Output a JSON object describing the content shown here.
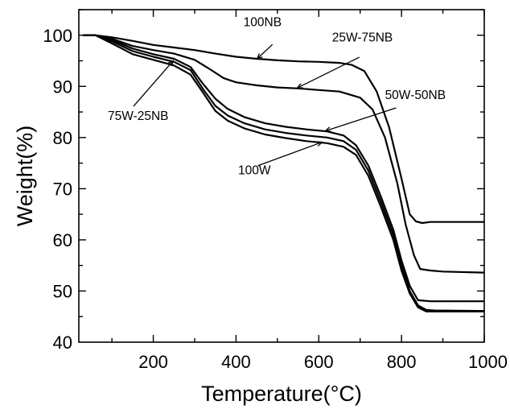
{
  "chart_data": {
    "type": "line",
    "title": "",
    "xlabel": "Temperature(°C)",
    "ylabel": "Weight(%)",
    "xlim": [
      20,
      1000
    ],
    "ylim": [
      40,
      105
    ],
    "x_ticks": [
      200,
      400,
      600,
      800,
      1000
    ],
    "y_ticks": [
      40,
      50,
      60,
      70,
      80,
      90,
      100
    ],
    "x_tick_labels": [
      "200",
      "400",
      "600",
      "800",
      "1000"
    ],
    "y_tick_labels": [
      "40",
      "50",
      "60",
      "70",
      "80",
      "90",
      "100"
    ],
    "grid": false,
    "legend": "none",
    "series": [
      {
        "name": "100NB",
        "points": [
          [
            30,
            100
          ],
          [
            60,
            100
          ],
          [
            100,
            99.6
          ],
          [
            150,
            98.9
          ],
          [
            200,
            98.1
          ],
          [
            250,
            97.6
          ],
          [
            300,
            97.1
          ],
          [
            350,
            96.4
          ],
          [
            400,
            95.8
          ],
          [
            450,
            95.4
          ],
          [
            500,
            95.1
          ],
          [
            550,
            94.9
          ],
          [
            600,
            94.8
          ],
          [
            650,
            94.6
          ],
          [
            680,
            94.2
          ],
          [
            710,
            93
          ],
          [
            740,
            89
          ],
          [
            770,
            82
          ],
          [
            800,
            72
          ],
          [
            820,
            65
          ],
          [
            835,
            63.6
          ],
          [
            850,
            63.3
          ],
          [
            870,
            63.5
          ],
          [
            900,
            63.5
          ],
          [
            1000,
            63.5
          ]
        ]
      },
      {
        "name": "25W-75NB",
        "points": [
          [
            30,
            100
          ],
          [
            60,
            100
          ],
          [
            100,
            99.3
          ],
          [
            150,
            97.9
          ],
          [
            200,
            97.1
          ],
          [
            250,
            96.4
          ],
          [
            300,
            95.2
          ],
          [
            340,
            93.2
          ],
          [
            370,
            91.6
          ],
          [
            400,
            90.8
          ],
          [
            450,
            90.2
          ],
          [
            500,
            89.8
          ],
          [
            550,
            89.6
          ],
          [
            600,
            89.3
          ],
          [
            650,
            89
          ],
          [
            700,
            87.8
          ],
          [
            730,
            85.5
          ],
          [
            760,
            80
          ],
          [
            790,
            71
          ],
          [
            810,
            63
          ],
          [
            830,
            57
          ],
          [
            845,
            54.3
          ],
          [
            870,
            54
          ],
          [
            900,
            53.8
          ],
          [
            1000,
            53.6
          ]
        ]
      },
      {
        "name": "50W-50NB",
        "points": [
          [
            30,
            100
          ],
          [
            60,
            100
          ],
          [
            100,
            99.1
          ],
          [
            150,
            97.4
          ],
          [
            200,
            96.3
          ],
          [
            250,
            95.4
          ],
          [
            290,
            93.8
          ],
          [
            320,
            90.5
          ],
          [
            350,
            87.6
          ],
          [
            380,
            85.6
          ],
          [
            420,
            84
          ],
          [
            470,
            82.8
          ],
          [
            520,
            82.1
          ],
          [
            570,
            81.6
          ],
          [
            620,
            81.2
          ],
          [
            660,
            80.4
          ],
          [
            690,
            78.5
          ],
          [
            720,
            74.5
          ],
          [
            750,
            68.5
          ],
          [
            780,
            62
          ],
          [
            800,
            56
          ],
          [
            820,
            51
          ],
          [
            840,
            48.2
          ],
          [
            870,
            48
          ],
          [
            900,
            48
          ],
          [
            1000,
            48
          ]
        ]
      },
      {
        "name": "75W-25NB",
        "points": [
          [
            30,
            100
          ],
          [
            60,
            100
          ],
          [
            100,
            98.8
          ],
          [
            150,
            96.9
          ],
          [
            200,
            95.8
          ],
          [
            250,
            94.8
          ],
          [
            290,
            93.2
          ],
          [
            320,
            89.5
          ],
          [
            350,
            86.2
          ],
          [
            380,
            84.3
          ],
          [
            420,
            82.8
          ],
          [
            470,
            81.6
          ],
          [
            520,
            80.9
          ],
          [
            570,
            80.4
          ],
          [
            620,
            80
          ],
          [
            660,
            79.3
          ],
          [
            690,
            77.6
          ],
          [
            720,
            73.5
          ],
          [
            750,
            67.5
          ],
          [
            780,
            61
          ],
          [
            800,
            55
          ],
          [
            820,
            50
          ],
          [
            840,
            47.2
          ],
          [
            860,
            46.3
          ],
          [
            880,
            46.2
          ],
          [
            1000,
            46.1
          ]
        ]
      },
      {
        "name": "100W",
        "points": [
          [
            30,
            100
          ],
          [
            60,
            100
          ],
          [
            100,
            98.4
          ],
          [
            150,
            96.3
          ],
          [
            200,
            95.2
          ],
          [
            250,
            94.1
          ],
          [
            290,
            92.3
          ],
          [
            320,
            88.8
          ],
          [
            350,
            85.2
          ],
          [
            380,
            83.3
          ],
          [
            420,
            81.8
          ],
          [
            470,
            80.6
          ],
          [
            520,
            79.9
          ],
          [
            570,
            79.3
          ],
          [
            620,
            78.9
          ],
          [
            660,
            78.2
          ],
          [
            690,
            76.6
          ],
          [
            720,
            72.5
          ],
          [
            750,
            66.5
          ],
          [
            780,
            60
          ],
          [
            800,
            54
          ],
          [
            820,
            49.5
          ],
          [
            840,
            46.8
          ],
          [
            860,
            46
          ],
          [
            880,
            46
          ],
          [
            1000,
            46
          ]
        ]
      }
    ],
    "annotations": [
      {
        "text": "100NB",
        "anchor": "start",
        "label_at": [
          418,
          101.8
        ],
        "arrow_from": [
          488,
          98.2
        ],
        "arrow_to": [
          451,
          95.4
        ]
      },
      {
        "text": "25W-75NB",
        "anchor": "start",
        "label_at": [
          632,
          98.8
        ],
        "arrow_from": [
          698,
          95.7
        ],
        "arrow_to": [
          548,
          89.7
        ]
      },
      {
        "text": "50W-50NB",
        "anchor": "start",
        "label_at": [
          760,
          87.5
        ],
        "arrow_from": [
          787,
          85.8
        ],
        "arrow_to": [
          616,
          81.3
        ]
      },
      {
        "text": "75W-25NB",
        "anchor": "start",
        "label_at": [
          90,
          83.4
        ],
        "arrow_from": [
          152,
          86.1
        ],
        "arrow_to": [
          248,
          95
        ]
      },
      {
        "text": "100W",
        "anchor": "start",
        "label_at": [
          405,
          72.8
        ],
        "arrow_from": [
          453,
          74.5
        ],
        "arrow_to": [
          608,
          79.1
        ]
      }
    ]
  }
}
